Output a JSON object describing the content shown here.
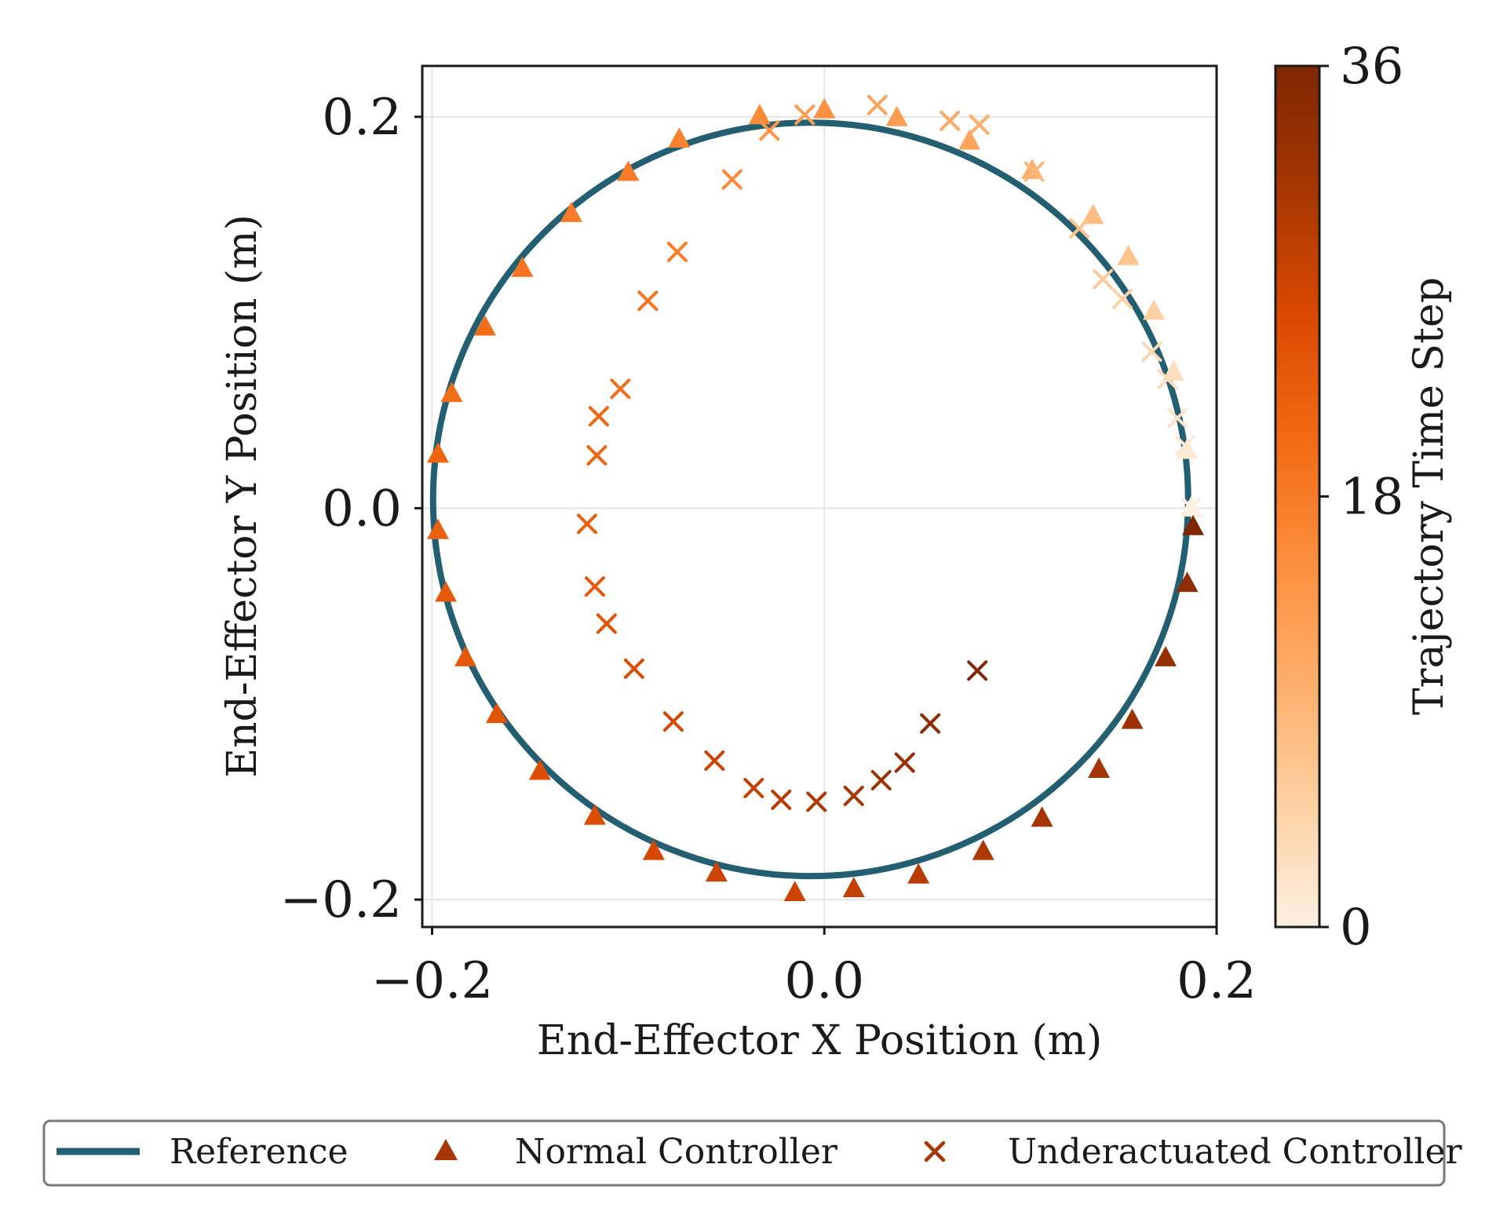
{
  "chart_data": {
    "type": "scatter",
    "xlabel": "End-Effector X Position (m)",
    "ylabel": "End-Effector Y Position (m)",
    "xlim": [
      -0.205,
      0.2
    ],
    "ylim": [
      -0.214,
      0.226
    ],
    "xticks": [
      {
        "value": -0.2,
        "label": "−0.2"
      },
      {
        "value": 0.0,
        "label": "0.0"
      },
      {
        "value": 0.2,
        "label": "0.2"
      }
    ],
    "yticks": [
      {
        "value": 0.2,
        "label": "0.2"
      },
      {
        "value": 0.0,
        "label": "0.0"
      },
      {
        "value": -0.2,
        "label": "−0.2"
      }
    ],
    "grid": true,
    "colorbar": {
      "label": "Trajectory Time Step",
      "min": 0,
      "max": 36,
      "ticks": [
        {
          "value": 0,
          "label": "0"
        },
        {
          "value": 18,
          "label": "18"
        },
        {
          "value": 36,
          "label": "36"
        }
      ],
      "colors": [
        "#fdf0e2",
        "#fdd0a2",
        "#fdae6b",
        "#fd8d3c",
        "#f16913",
        "#d94801",
        "#a63603",
        "#7f2704"
      ]
    },
    "legend": {
      "position": "bottom",
      "entries": [
        {
          "label": "Reference",
          "marker": "line",
          "color": "#235f70"
        },
        {
          "label": "Normal Controller",
          "marker": "triangle",
          "color": "#a63603"
        },
        {
          "label": "Underactuated Controller",
          "marker": "x",
          "color": "#a63603"
        }
      ]
    },
    "series": [
      {
        "name": "Reference",
        "kind": "line",
        "color": "#235f70",
        "shape": "circle",
        "center": [
          -0.007,
          0.0045
        ],
        "radius": 0.1925
      },
      {
        "name": "Normal Controller",
        "kind": "scatter",
        "marker": "triangle",
        "points": [
          {
            "x": 0.187,
            "y": 0.0005,
            "t": 0
          },
          {
            "x": 0.185,
            "y": 0.03,
            "t": 1
          },
          {
            "x": 0.178,
            "y": 0.07,
            "t": 3
          },
          {
            "x": 0.168,
            "y": 0.101,
            "t": 5
          },
          {
            "x": 0.155,
            "y": 0.129,
            "t": 7
          },
          {
            "x": 0.137,
            "y": 0.15,
            "t": 8
          },
          {
            "x": 0.106,
            "y": 0.173,
            "t": 10
          },
          {
            "x": 0.074,
            "y": 0.188,
            "t": 12
          },
          {
            "x": 0.037,
            "y": 0.2,
            "t": 13
          },
          {
            "x": 0.0,
            "y": 0.204,
            "t": 15
          },
          {
            "x": -0.033,
            "y": 0.201,
            "t": 16
          },
          {
            "x": -0.074,
            "y": 0.189,
            "t": 17
          },
          {
            "x": -0.1,
            "y": 0.172,
            "t": 18
          },
          {
            "x": -0.129,
            "y": 0.151,
            "t": 18
          },
          {
            "x": -0.154,
            "y": 0.123,
            "t": 19
          },
          {
            "x": -0.173,
            "y": 0.093,
            "t": 20
          },
          {
            "x": -0.19,
            "y": 0.059,
            "t": 20
          },
          {
            "x": -0.197,
            "y": 0.028,
            "t": 21
          },
          {
            "x": -0.197,
            "y": -0.011,
            "t": 22
          },
          {
            "x": -0.193,
            "y": -0.043,
            "t": 23
          },
          {
            "x": -0.183,
            "y": -0.076,
            "t": 23
          },
          {
            "x": -0.167,
            "y": -0.105,
            "t": 24
          },
          {
            "x": -0.145,
            "y": -0.134,
            "t": 25
          },
          {
            "x": -0.117,
            "y": -0.157,
            "t": 25
          },
          {
            "x": -0.087,
            "y": -0.175,
            "t": 26
          },
          {
            "x": -0.055,
            "y": -0.186,
            "t": 27
          },
          {
            "x": -0.015,
            "y": -0.196,
            "t": 27
          },
          {
            "x": 0.015,
            "y": -0.194,
            "t": 28
          },
          {
            "x": 0.048,
            "y": -0.187,
            "t": 29
          },
          {
            "x": 0.081,
            "y": -0.175,
            "t": 30
          },
          {
            "x": 0.111,
            "y": -0.158,
            "t": 31
          },
          {
            "x": 0.14,
            "y": -0.133,
            "t": 31
          },
          {
            "x": 0.157,
            "y": -0.108,
            "t": 32
          },
          {
            "x": 0.174,
            "y": -0.076,
            "t": 33
          },
          {
            "x": 0.185,
            "y": -0.038,
            "t": 34
          },
          {
            "x": 0.188,
            "y": -0.009,
            "t": 36
          }
        ]
      },
      {
        "name": "Underactuated Controller",
        "kind": "scatter",
        "marker": "x",
        "points": [
          {
            "x": 0.187,
            "y": 0.0005,
            "t": 0
          },
          {
            "x": 0.184,
            "y": 0.032,
            "t": 1
          },
          {
            "x": 0.18,
            "y": 0.046,
            "t": 2
          },
          {
            "x": 0.175,
            "y": 0.066,
            "t": 3
          },
          {
            "x": 0.167,
            "y": 0.08,
            "t": 4
          },
          {
            "x": 0.152,
            "y": 0.107,
            "t": 5
          },
          {
            "x": 0.142,
            "y": 0.117,
            "t": 6
          },
          {
            "x": 0.13,
            "y": 0.143,
            "t": 7
          },
          {
            "x": 0.107,
            "y": 0.172,
            "t": 9
          },
          {
            "x": 0.079,
            "y": 0.196,
            "t": 10
          },
          {
            "x": 0.064,
            "y": 0.198,
            "t": 11
          },
          {
            "x": 0.027,
            "y": 0.206,
            "t": 12
          },
          {
            "x": -0.01,
            "y": 0.201,
            "t": 13
          },
          {
            "x": -0.028,
            "y": 0.193,
            "t": 14
          },
          {
            "x": -0.047,
            "y": 0.168,
            "t": 16
          },
          {
            "x": -0.075,
            "y": 0.131,
            "t": 18
          },
          {
            "x": -0.09,
            "y": 0.106,
            "t": 19
          },
          {
            "x": -0.104,
            "y": 0.061,
            "t": 20
          },
          {
            "x": -0.115,
            "y": 0.047,
            "t": 21
          },
          {
            "x": -0.116,
            "y": 0.027,
            "t": 21
          },
          {
            "x": -0.121,
            "y": -0.008,
            "t": 22
          },
          {
            "x": -0.117,
            "y": -0.04,
            "t": 23
          },
          {
            "x": -0.111,
            "y": -0.059,
            "t": 24
          },
          {
            "x": -0.097,
            "y": -0.082,
            "t": 25
          },
          {
            "x": -0.077,
            "y": -0.109,
            "t": 26
          },
          {
            "x": -0.056,
            "y": -0.129,
            "t": 27
          },
          {
            "x": -0.036,
            "y": -0.143,
            "t": 28
          },
          {
            "x": -0.022,
            "y": -0.149,
            "t": 29
          },
          {
            "x": -0.004,
            "y": -0.15,
            "t": 30
          },
          {
            "x": 0.015,
            "y": -0.147,
            "t": 31
          },
          {
            "x": 0.029,
            "y": -0.139,
            "t": 32
          },
          {
            "x": 0.041,
            "y": -0.13,
            "t": 33
          },
          {
            "x": 0.054,
            "y": -0.11,
            "t": 34
          },
          {
            "x": 0.078,
            "y": -0.083,
            "t": 36
          }
        ]
      }
    ]
  }
}
